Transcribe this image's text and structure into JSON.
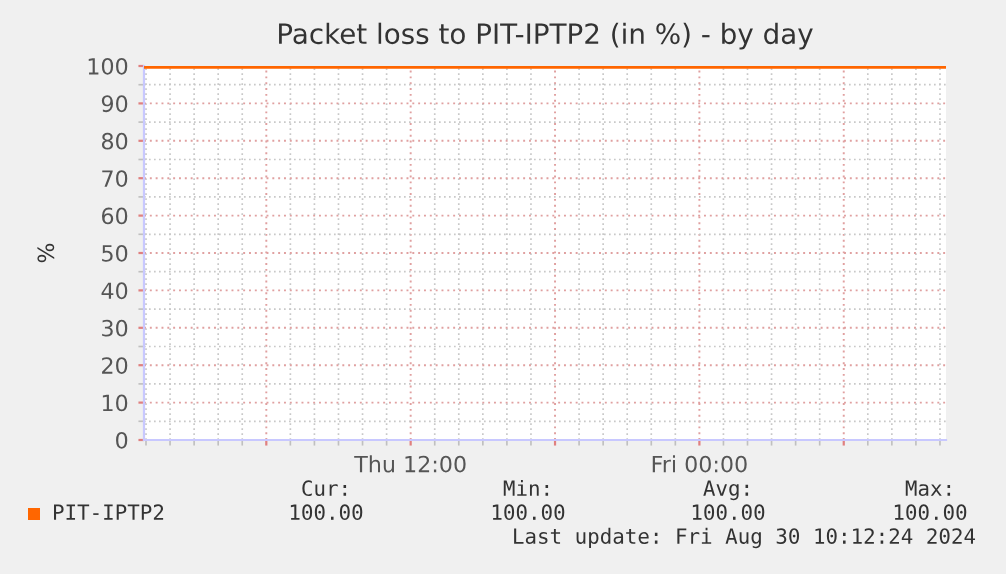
{
  "chart_data": {
    "type": "line",
    "title": "Packet loss to PIT-IPTP2 (in %) - by day",
    "ylabel": "%",
    "x": [
      "2024-08-29T00:55",
      "2024-08-30T10:15"
    ],
    "series": [
      {
        "name": "PIT-IPTP2",
        "color": "#ff6600",
        "values": [
          100,
          100
        ]
      }
    ],
    "xlim": [
      "2024-08-29T00:55",
      "2024-08-30T10:15"
    ],
    "xticks": [
      {
        "value": "2024-08-29T06:00",
        "label": null
      },
      {
        "value": "2024-08-29T12:00",
        "label": "Thu 12:00"
      },
      {
        "value": "2024-08-29T18:00",
        "label": null
      },
      {
        "value": "2024-08-30T00:00",
        "label": "Fri 00:00"
      },
      {
        "value": "2024-08-30T06:00",
        "label": null
      }
    ],
    "ylim": [
      0,
      100
    ],
    "yticks": [
      0,
      10,
      20,
      30,
      40,
      50,
      60,
      70,
      80,
      90,
      100
    ],
    "grid": true,
    "legend": "bottom",
    "annotations": [
      "Cur:",
      "Min:",
      "Avg:",
      "Max:",
      "100.00",
      "100.00",
      "100.00",
      "100.00",
      "Last update: Fri Aug 30 10:12:24 2024"
    ]
  }
}
